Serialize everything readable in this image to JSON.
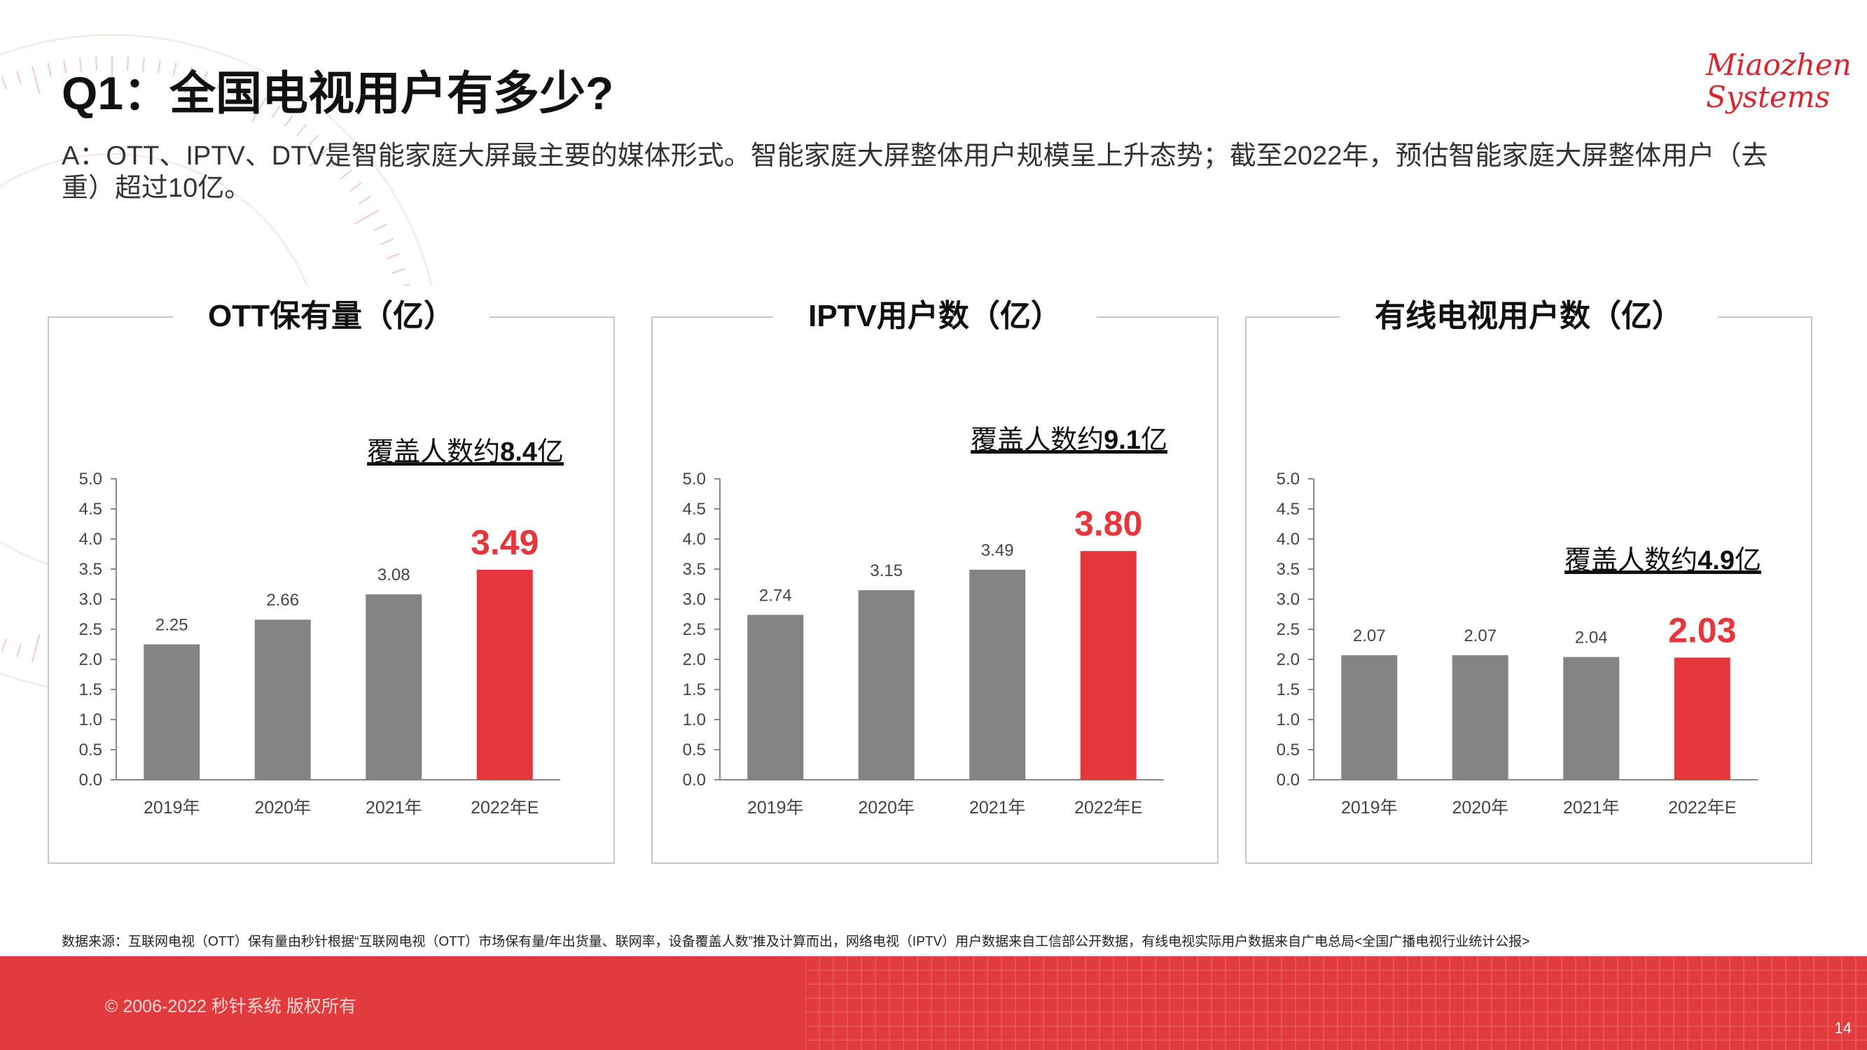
{
  "header": {
    "title": "Q1：全国电视用户有多少?",
    "subtitle": "A：OTT、IPTV、DTV是智能家庭大屏最主要的媒体形式。智能家庭大屏整体用户规模呈上升态势；截至2022年，预估智能家庭大屏整体用户（去重）超过10亿。"
  },
  "logo": {
    "line1": "Miaozhen",
    "line2": "Systems",
    "color": "#d7262e"
  },
  "colors": {
    "bar_gray": "#848484",
    "bar_red": "#e5373b",
    "axis": "#888888",
    "text": "#444444"
  },
  "chart_data": [
    {
      "type": "bar",
      "title": "OTT保有量（亿）",
      "categories": [
        "2019年",
        "2020年",
        "2021年",
        "2022年E"
      ],
      "values": [
        2.25,
        2.66,
        3.08,
        3.49
      ],
      "value_labels": [
        "2.25",
        "2.66",
        "3.08",
        "3.49"
      ],
      "highlight_index": 3,
      "ylim": [
        0,
        5
      ],
      "yticks": [
        "0.0",
        "0.5",
        "1.0",
        "1.5",
        "2.0",
        "2.5",
        "3.0",
        "3.5",
        "4.0",
        "4.5",
        "5.0"
      ],
      "annotation": {
        "prefix": "覆盖人数约",
        "value": "8.4",
        "suffix": "亿",
        "at_value": 5.3
      }
    },
    {
      "type": "bar",
      "title": "IPTV用户数（亿）",
      "categories": [
        "2019年",
        "2020年",
        "2021年",
        "2022年E"
      ],
      "values": [
        2.74,
        3.15,
        3.49,
        3.8
      ],
      "value_labels": [
        "2.74",
        "3.15",
        "3.49",
        "3.80"
      ],
      "highlight_index": 3,
      "ylim": [
        0,
        5
      ],
      "yticks": [
        "0.0",
        "0.5",
        "1.0",
        "1.5",
        "2.0",
        "2.5",
        "3.0",
        "3.5",
        "4.0",
        "4.5",
        "5.0"
      ],
      "annotation": {
        "prefix": "覆盖人数约",
        "value": "9.1",
        "suffix": "亿",
        "at_value": 5.5
      }
    },
    {
      "type": "bar",
      "title": "有线电视用户数（亿）",
      "categories": [
        "2019年",
        "2020年",
        "2021年",
        "2022年E"
      ],
      "values": [
        2.07,
        2.07,
        2.04,
        2.03
      ],
      "value_labels": [
        "2.07",
        "2.07",
        "2.04",
        "2.03"
      ],
      "highlight_index": 3,
      "ylim": [
        0,
        5
      ],
      "yticks": [
        "0.0",
        "0.5",
        "1.0",
        "1.5",
        "2.0",
        "2.5",
        "3.0",
        "3.5",
        "4.0",
        "4.5",
        "5.0"
      ],
      "annotation": {
        "prefix": "覆盖人数约",
        "value": "4.9",
        "suffix": "亿",
        "at_value": 3.5
      }
    }
  ],
  "footer": {
    "source_note": "数据来源：互联网电视（OTT）保有量由秒针根据“互联网电视（OTT）市场保有量/年出货量、联网率，设备覆盖人数”推及计算而出，网络电视（IPTV）用户数据来自工信部公开数据，有线电视实际用户数据来自广电总局<全国广播电视行业统计公报>",
    "copyright": "© 2006-2022 秒针系统 版权所有",
    "page_number": "14"
  }
}
